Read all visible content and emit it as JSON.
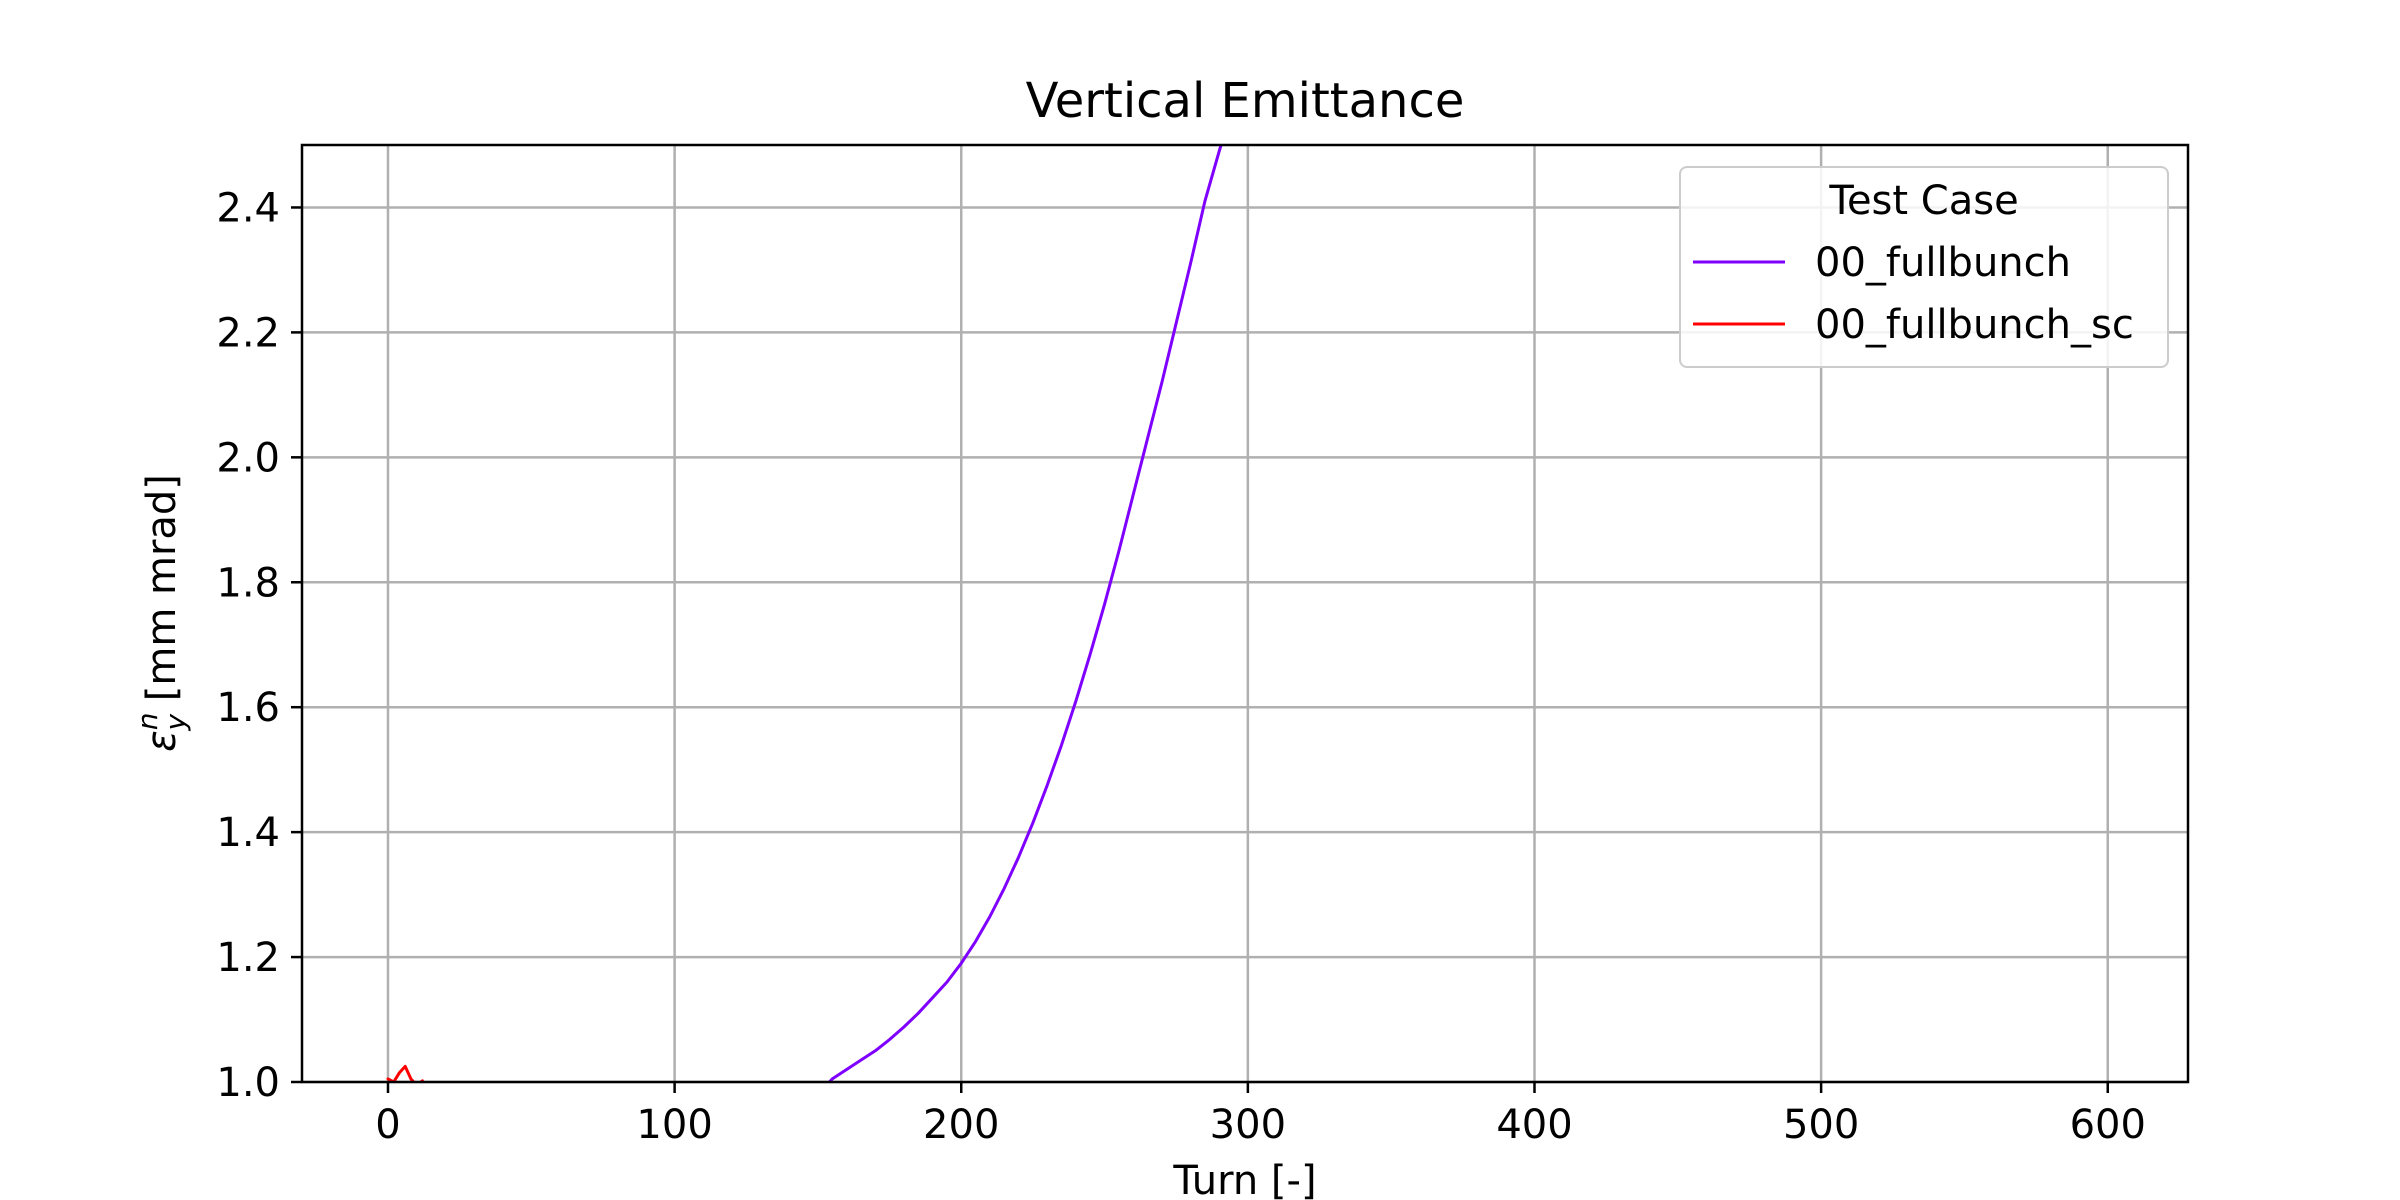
{
  "chart_data": {
    "type": "line",
    "title": "Vertical Emittance",
    "xlabel": "Turn [-]",
    "ylabel": {
      "symbol": "ε",
      "sup": "n",
      "sub": "y",
      "unit": " [mm mrad]"
    },
    "xlim": [
      -30,
      628
    ],
    "ylim": [
      1.0,
      2.5
    ],
    "xticks": [
      0,
      100,
      200,
      300,
      400,
      500,
      600
    ],
    "yticks": [
      1.0,
      1.2,
      1.4,
      1.6,
      1.8,
      2.0,
      2.2,
      2.4
    ],
    "grid": true,
    "legend": {
      "title": "Test Case",
      "placement": "top-right"
    },
    "series": [
      {
        "name": "00_fullbunch",
        "color": "#7f00ff",
        "x": [
          150,
          155,
          160,
          165,
          170,
          175,
          180,
          185,
          190,
          195,
          200,
          205,
          210,
          215,
          220,
          225,
          230,
          235,
          240,
          245,
          250,
          255,
          260,
          265,
          270,
          275,
          280,
          285,
          290,
          292
        ],
        "y": [
          0.98,
          1.005,
          1.02,
          1.035,
          1.05,
          1.068,
          1.088,
          1.11,
          1.135,
          1.16,
          1.19,
          1.225,
          1.265,
          1.31,
          1.36,
          1.415,
          1.475,
          1.54,
          1.61,
          1.685,
          1.765,
          1.85,
          1.94,
          2.03,
          2.12,
          2.215,
          2.31,
          2.41,
          2.49,
          2.52
        ]
      },
      {
        "name": "00_fullbunch_sc",
        "color": "#ff0000",
        "x": [
          0,
          2,
          4,
          6,
          8,
          10,
          12
        ],
        "y": [
          1.005,
          1.0,
          1.015,
          1.025,
          1.005,
          0.995,
          1.002
        ]
      }
    ]
  }
}
